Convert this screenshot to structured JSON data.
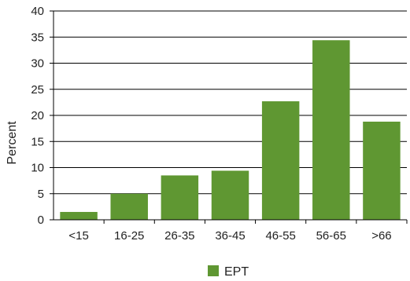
{
  "chart_data": {
    "type": "bar",
    "categories": [
      "<15",
      "16-25",
      "26-35",
      "36-45",
      "46-55",
      "56-65",
      ">66"
    ],
    "series": [
      {
        "name": "EPT",
        "values": [
          1.5,
          5.0,
          8.5,
          9.4,
          22.7,
          34.4,
          18.8
        ],
        "color": "#5f9732"
      }
    ],
    "ylabel": "Percent",
    "ylim": [
      0,
      40
    ],
    "yticks": [
      0,
      5,
      10,
      15,
      20,
      25,
      30,
      35,
      40
    ],
    "grid": true,
    "legend_position": "bottom-center"
  }
}
